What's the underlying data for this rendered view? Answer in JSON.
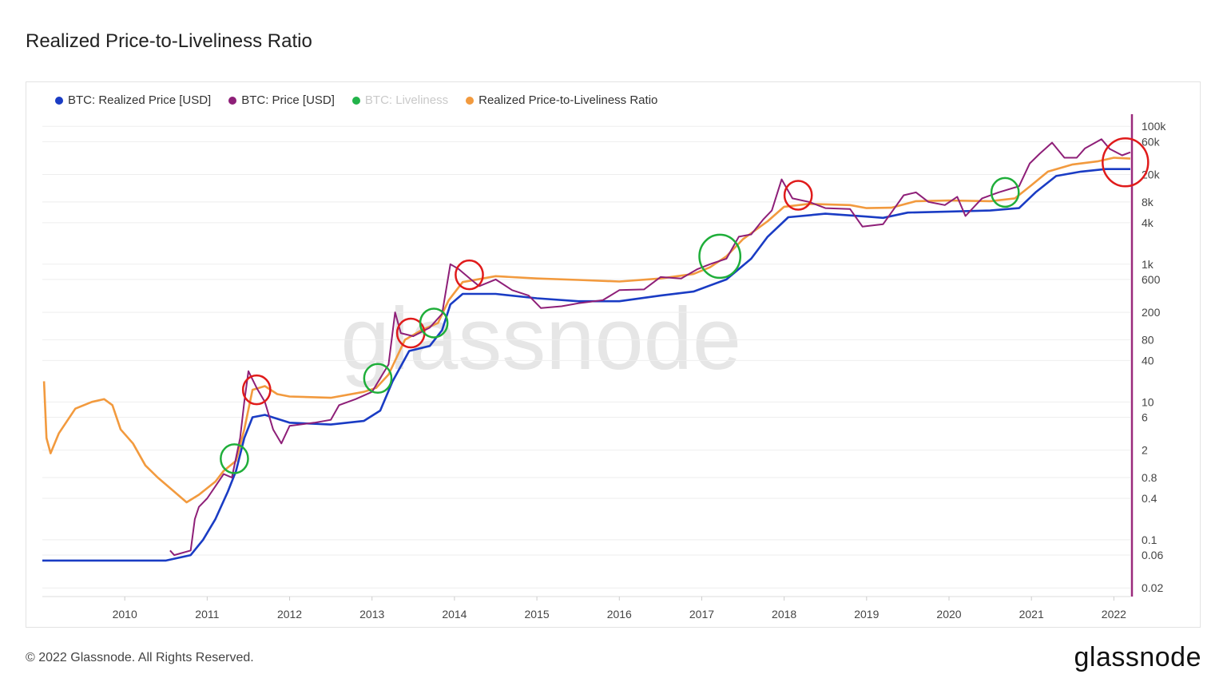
{
  "page": {
    "title": "Realized Price-to-Liveliness Ratio",
    "copyright": "© 2022 Glassnode. All Rights Reserved.",
    "brand": "glassnode",
    "watermark": "glassnode"
  },
  "colors": {
    "realized_price": "#1a3cc4",
    "price": "#8e1f78",
    "liveliness": "#22b34a",
    "ratio": "#f29a3e",
    "circle_green": "#1fae3a",
    "circle_red": "#e01b1b",
    "cursor_line": "#9a2a7c"
  },
  "chart_data": {
    "type": "line",
    "title": "Realized Price-to-Liveliness Ratio",
    "legend_placement": "top-left",
    "y_scale": "log",
    "ylim": [
      0.015,
      150000
    ],
    "xlim": [
      2009.0,
      2022.2
    ],
    "x_ticks": [
      "2010",
      "2011",
      "2012",
      "2013",
      "2014",
      "2015",
      "2016",
      "2017",
      "2018",
      "2019",
      "2020",
      "2021",
      "2022"
    ],
    "x_tick_values": [
      2010,
      2011,
      2012,
      2013,
      2014,
      2015,
      2016,
      2017,
      2018,
      2019,
      2020,
      2021,
      2022
    ],
    "y_ticks": [
      "100k",
      "60k",
      "20k",
      "8k",
      "4k",
      "1k",
      "600",
      "200",
      "80",
      "40",
      "10",
      "6",
      "2",
      "0.8",
      "0.4",
      "0.1",
      "0.06",
      "0.02"
    ],
    "y_tick_values": [
      100000,
      60000,
      20000,
      8000,
      4000,
      1000,
      600,
      200,
      80,
      40,
      10,
      6,
      2,
      0.8,
      0.4,
      0.1,
      0.06,
      0.02
    ],
    "series": [
      {
        "name": "BTC: Realized Price [USD]",
        "key": "realized_price",
        "points": [
          [
            2009.0,
            0.05
          ],
          [
            2010.5,
            0.05
          ],
          [
            2010.8,
            0.06
          ],
          [
            2010.95,
            0.1
          ],
          [
            2011.1,
            0.2
          ],
          [
            2011.25,
            0.5
          ],
          [
            2011.35,
            1.0
          ],
          [
            2011.45,
            3.0
          ],
          [
            2011.55,
            6.0
          ],
          [
            2011.7,
            6.5
          ],
          [
            2012.0,
            5.0
          ],
          [
            2012.5,
            4.7
          ],
          [
            2012.9,
            5.3
          ],
          [
            2013.1,
            7.5
          ],
          [
            2013.25,
            20
          ],
          [
            2013.45,
            55
          ],
          [
            2013.7,
            65
          ],
          [
            2013.85,
            110
          ],
          [
            2013.95,
            260
          ],
          [
            2014.1,
            370
          ],
          [
            2014.5,
            370
          ],
          [
            2015.0,
            320
          ],
          [
            2015.5,
            290
          ],
          [
            2016.0,
            290
          ],
          [
            2016.5,
            350
          ],
          [
            2016.9,
            400
          ],
          [
            2017.3,
            600
          ],
          [
            2017.6,
            1200
          ],
          [
            2017.8,
            2500
          ],
          [
            2018.05,
            4800
          ],
          [
            2018.5,
            5400
          ],
          [
            2019.0,
            4900
          ],
          [
            2019.2,
            4700
          ],
          [
            2019.5,
            5600
          ],
          [
            2020.0,
            5800
          ],
          [
            2020.5,
            6000
          ],
          [
            2020.85,
            6500
          ],
          [
            2021.05,
            11000
          ],
          [
            2021.3,
            19000
          ],
          [
            2021.6,
            22000
          ],
          [
            2021.9,
            24000
          ],
          [
            2022.2,
            24000
          ]
        ]
      },
      {
        "name": "BTC: Price [USD]",
        "key": "price",
        "points": [
          [
            2010.55,
            0.07
          ],
          [
            2010.6,
            0.06
          ],
          [
            2010.8,
            0.07
          ],
          [
            2010.85,
            0.2
          ],
          [
            2010.9,
            0.3
          ],
          [
            2011.0,
            0.4
          ],
          [
            2011.1,
            0.6
          ],
          [
            2011.2,
            0.9
          ],
          [
            2011.3,
            0.8
          ],
          [
            2011.4,
            3.0
          ],
          [
            2011.45,
            10
          ],
          [
            2011.5,
            28
          ],
          [
            2011.6,
            16
          ],
          [
            2011.7,
            10
          ],
          [
            2011.8,
            4.0
          ],
          [
            2011.9,
            2.5
          ],
          [
            2012.0,
            4.5
          ],
          [
            2012.3,
            5
          ],
          [
            2012.5,
            5.5
          ],
          [
            2012.6,
            9
          ],
          [
            2012.8,
            11
          ],
          [
            2013.0,
            14
          ],
          [
            2013.2,
            35
          ],
          [
            2013.28,
            200
          ],
          [
            2013.35,
            100
          ],
          [
            2013.5,
            90
          ],
          [
            2013.7,
            120
          ],
          [
            2013.85,
            190
          ],
          [
            2013.95,
            1000
          ],
          [
            2014.05,
            850
          ],
          [
            2014.2,
            600
          ],
          [
            2014.3,
            480
          ],
          [
            2014.5,
            600
          ],
          [
            2014.7,
            420
          ],
          [
            2014.9,
            350
          ],
          [
            2015.05,
            230
          ],
          [
            2015.3,
            245
          ],
          [
            2015.5,
            270
          ],
          [
            2015.8,
            300
          ],
          [
            2016.0,
            420
          ],
          [
            2016.3,
            430
          ],
          [
            2016.5,
            650
          ],
          [
            2016.75,
            620
          ],
          [
            2016.95,
            850
          ],
          [
            2017.1,
            1000
          ],
          [
            2017.3,
            1200
          ],
          [
            2017.45,
            2500
          ],
          [
            2017.6,
            2700
          ],
          [
            2017.75,
            4500
          ],
          [
            2017.85,
            6000
          ],
          [
            2017.97,
            17000
          ],
          [
            2018.1,
            9000
          ],
          [
            2018.3,
            8000
          ],
          [
            2018.5,
            6500
          ],
          [
            2018.8,
            6300
          ],
          [
            2018.95,
            3500
          ],
          [
            2019.2,
            3800
          ],
          [
            2019.45,
            10000
          ],
          [
            2019.6,
            11000
          ],
          [
            2019.75,
            8000
          ],
          [
            2019.95,
            7200
          ],
          [
            2020.1,
            9500
          ],
          [
            2020.2,
            5000
          ],
          [
            2020.4,
            9000
          ],
          [
            2020.6,
            11000
          ],
          [
            2020.85,
            13500
          ],
          [
            2020.98,
            29000
          ],
          [
            2021.1,
            40000
          ],
          [
            2021.25,
            58000
          ],
          [
            2021.4,
            35000
          ],
          [
            2021.55,
            35000
          ],
          [
            2021.65,
            48000
          ],
          [
            2021.85,
            65000
          ],
          [
            2021.95,
            47000
          ],
          [
            2022.1,
            38000
          ],
          [
            2022.2,
            42000
          ]
        ]
      },
      {
        "name": "BTC: Liveliness",
        "key": "liveliness",
        "points": []
      },
      {
        "name": "Realized Price-to-Liveliness Ratio",
        "key": "ratio",
        "points": [
          [
            2009.02,
            20
          ],
          [
            2009.05,
            3
          ],
          [
            2009.1,
            1.8
          ],
          [
            2009.2,
            3.5
          ],
          [
            2009.4,
            8
          ],
          [
            2009.6,
            10
          ],
          [
            2009.75,
            11
          ],
          [
            2009.85,
            9
          ],
          [
            2009.95,
            4
          ],
          [
            2010.1,
            2.5
          ],
          [
            2010.25,
            1.2
          ],
          [
            2010.4,
            0.8
          ],
          [
            2010.6,
            0.5
          ],
          [
            2010.75,
            0.35
          ],
          [
            2010.9,
            0.45
          ],
          [
            2011.1,
            0.7
          ],
          [
            2011.2,
            1.0
          ],
          [
            2011.35,
            1.4
          ],
          [
            2011.45,
            4.0
          ],
          [
            2011.55,
            15
          ],
          [
            2011.7,
            17
          ],
          [
            2011.85,
            13
          ],
          [
            2012.0,
            12
          ],
          [
            2012.5,
            11.5
          ],
          [
            2012.9,
            14
          ],
          [
            2013.05,
            16
          ],
          [
            2013.2,
            25
          ],
          [
            2013.4,
            80
          ],
          [
            2013.6,
            110
          ],
          [
            2013.8,
            140
          ],
          [
            2013.93,
            300
          ],
          [
            2014.1,
            550
          ],
          [
            2014.5,
            670
          ],
          [
            2015.0,
            620
          ],
          [
            2015.5,
            590
          ],
          [
            2016.0,
            560
          ],
          [
            2016.5,
            620
          ],
          [
            2016.9,
            720
          ],
          [
            2017.1,
            900
          ],
          [
            2017.3,
            1300
          ],
          [
            2017.5,
            2300
          ],
          [
            2017.8,
            4200
          ],
          [
            2018.0,
            6800
          ],
          [
            2018.3,
            7500
          ],
          [
            2018.8,
            7200
          ],
          [
            2019.0,
            6500
          ],
          [
            2019.3,
            6600
          ],
          [
            2019.6,
            8200
          ],
          [
            2020.0,
            8400
          ],
          [
            2020.5,
            8200
          ],
          [
            2020.8,
            9000
          ],
          [
            2021.0,
            14000
          ],
          [
            2021.2,
            22000
          ],
          [
            2021.5,
            28000
          ],
          [
            2021.8,
            31000
          ],
          [
            2022.0,
            35000
          ],
          [
            2022.2,
            34000
          ]
        ]
      }
    ],
    "annotations": [
      {
        "type": "circle",
        "color": "green",
        "x": 2011.33,
        "y": 1.5
      },
      {
        "type": "circle",
        "color": "red",
        "x": 2011.6,
        "y": 15
      },
      {
        "type": "circle",
        "color": "green",
        "x": 2013.07,
        "y": 22
      },
      {
        "type": "circle",
        "color": "red",
        "x": 2013.47,
        "y": 100
      },
      {
        "type": "circle",
        "color": "green",
        "x": 2013.75,
        "y": 140
      },
      {
        "type": "circle",
        "color": "red",
        "x": 2014.18,
        "y": 700
      },
      {
        "type": "circle",
        "color": "green",
        "x": 2017.22,
        "y": 1300
      },
      {
        "type": "circle",
        "color": "red",
        "x": 2018.17,
        "y": 10000
      },
      {
        "type": "circle",
        "color": "green",
        "x": 2020.68,
        "y": 11000
      },
      {
        "type": "circle",
        "color": "red",
        "x": 2022.14,
        "y": 30000
      }
    ]
  }
}
